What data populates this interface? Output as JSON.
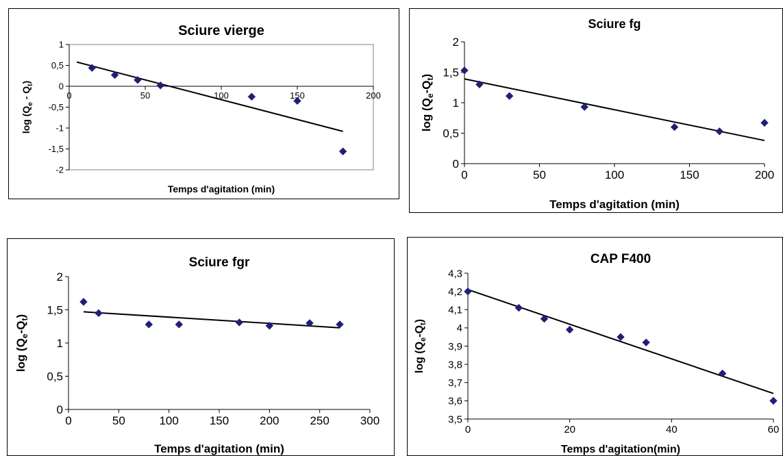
{
  "chart_data": [
    {
      "type": "scatter",
      "title": "Sciure vierge",
      "xlabel": "Temps d'agitation (min)",
      "ylabel": {
        "main": "log (Q",
        "sub1": "e",
        "mid": " - Q",
        "sub2": "t",
        "end": ")"
      },
      "xlim": [
        0,
        200
      ],
      "ylim": [
        -2,
        1
      ],
      "xticks": [
        0,
        50,
        100,
        150,
        200
      ],
      "yticks": [
        1,
        0.5,
        0,
        -0.5,
        -1,
        -1.5,
        -2
      ],
      "xtick_labels": [
        "0",
        "50",
        "100",
        "150",
        "200"
      ],
      "ytick_labels": [
        "1",
        "0,5",
        "0",
        "-0,5",
        "-1",
        "-1,5",
        "-2"
      ],
      "grid": false,
      "plot_area_border": true,
      "x_axis_at_zero": true,
      "points": {
        "x": [
          15,
          30,
          45,
          60,
          120,
          150,
          180
        ],
        "y": [
          0.44,
          0.27,
          0.15,
          0.02,
          -0.25,
          -0.35,
          -1.56
        ]
      },
      "trendline": {
        "x": [
          5,
          180
        ],
        "y": [
          0.58,
          -1.08
        ]
      },
      "marker_color": "#1f1f7a"
    },
    {
      "type": "scatter",
      "title": "Sciure fg",
      "xlabel": "Temps d'agitation (min)",
      "ylabel": {
        "main": "log (Q",
        "sub1": "e",
        "mid": "-Q",
        "sub2": "t",
        "end": ")"
      },
      "xlim": [
        0,
        200
      ],
      "ylim": [
        0,
        2
      ],
      "xticks": [
        0,
        50,
        100,
        150,
        200
      ],
      "yticks": [
        0,
        0.5,
        1,
        1.5,
        2
      ],
      "xtick_labels": [
        "0",
        "50",
        "100",
        "150",
        "200"
      ],
      "ytick_labels": [
        "0",
        "0,5",
        "1",
        "1,5",
        "2"
      ],
      "grid": false,
      "plot_area_border": false,
      "x_axis_at_zero": false,
      "points": {
        "x": [
          0,
          10,
          30,
          80,
          140,
          170,
          200
        ],
        "y": [
          1.53,
          1.3,
          1.11,
          0.93,
          0.6,
          0.53,
          0.67
        ]
      },
      "trendline": {
        "x": [
          0,
          200
        ],
        "y": [
          1.39,
          0.38
        ]
      },
      "marker_color": "#1f1f7a"
    },
    {
      "type": "scatter",
      "title": "Sciure fgr",
      "xlabel": "Temps d'agitation (min)",
      "ylabel": {
        "main": "log (Q",
        "sub1": "e",
        "mid": "-Q",
        "sub2": "t",
        "end": ")"
      },
      "xlim": [
        0,
        300
      ],
      "ylim": [
        0,
        2
      ],
      "xticks": [
        0,
        50,
        100,
        150,
        200,
        250,
        300
      ],
      "yticks": [
        0,
        0.5,
        1,
        1.5,
        2
      ],
      "xtick_labels": [
        "0",
        "50",
        "100",
        "150",
        "200",
        "250",
        "300"
      ],
      "ytick_labels": [
        "0",
        "0,5",
        "1",
        "1,5",
        "2"
      ],
      "grid": false,
      "plot_area_border": false,
      "x_axis_at_zero": false,
      "points": {
        "x": [
          15,
          30,
          80,
          110,
          170,
          200,
          240,
          270
        ],
        "y": [
          1.62,
          1.45,
          1.28,
          1.28,
          1.31,
          1.26,
          1.3,
          1.28
        ]
      },
      "trendline": {
        "x": [
          15,
          270
        ],
        "y": [
          1.47,
          1.23
        ]
      },
      "marker_color": "#1f1f7a"
    },
    {
      "type": "scatter",
      "title": "CAP F400",
      "xlabel": "Temps d'agitation(min)",
      "ylabel": {
        "main": "log (Q",
        "sub1": "e",
        "mid": "-Q",
        "sub2": "t",
        "end": ")"
      },
      "xlim": [
        0,
        60
      ],
      "ylim": [
        3.5,
        4.3
      ],
      "xticks": [
        0,
        20,
        40,
        60
      ],
      "yticks": [
        3.5,
        3.6,
        3.7,
        3.8,
        3.9,
        4.0,
        4.1,
        4.2,
        4.3
      ],
      "xtick_labels": [
        "0",
        "20",
        "40",
        "60"
      ],
      "ytick_labels": [
        "3,5",
        "3,6",
        "3,7",
        "3,8",
        "3,9",
        "4",
        "4,1",
        "4,2",
        "4,3"
      ],
      "grid": false,
      "plot_area_border": false,
      "x_axis_at_zero": false,
      "points": {
        "x": [
          0,
          10,
          15,
          20,
          30,
          35,
          50,
          60
        ],
        "y": [
          4.2,
          4.11,
          4.05,
          3.99,
          3.95,
          3.92,
          3.75,
          3.6
        ]
      },
      "trendline": {
        "x": [
          0,
          60
        ],
        "y": [
          4.21,
          3.64
        ]
      },
      "marker_color": "#1f1f7a"
    }
  ]
}
